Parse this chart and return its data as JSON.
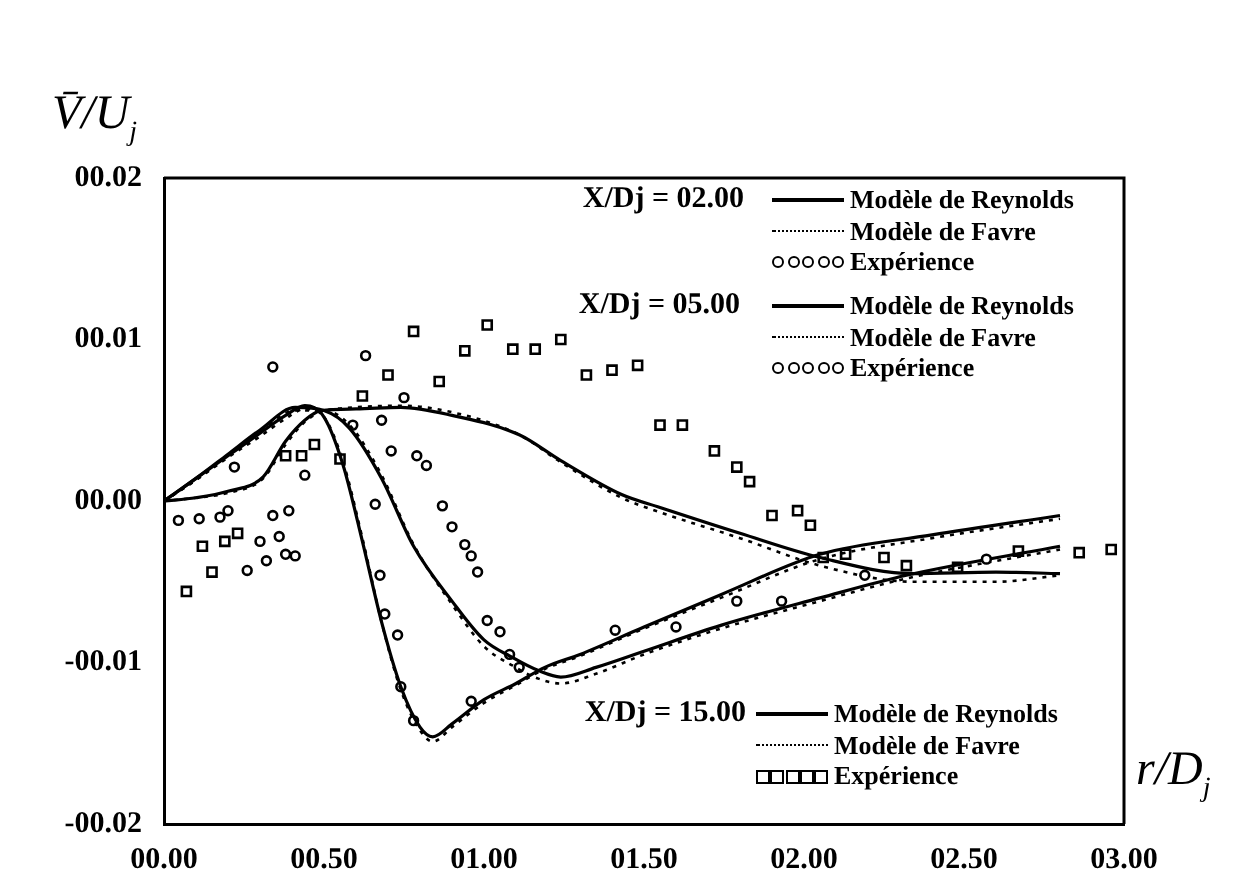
{
  "chart_data": {
    "type": "line",
    "xlabel": "r/D$_{j}$",
    "ylabel": "V̄/U$_{j}$",
    "annotations": [
      "X/Dj = 02.00",
      "X/Dj = 05.00",
      "X/Dj = 15.00"
    ],
    "xlim": [
      0,
      3
    ],
    "xticks": [
      {
        "value": 0,
        "label": "00.00"
      },
      {
        "value": 0.5,
        "label": "00.50"
      },
      {
        "value": 1,
        "label": "01.00"
      },
      {
        "value": 1.5,
        "label": "01.50"
      },
      {
        "value": 2,
        "label": "02.00"
      },
      {
        "value": 2.5,
        "label": "02.50"
      },
      {
        "value": 3,
        "label": "03.00"
      }
    ],
    "ylim": [
      -0.02,
      0.02
    ],
    "yticks": [
      {
        "value": -0.02,
        "label": "-00.02"
      },
      {
        "value": -0.01,
        "label": "-00.01"
      },
      {
        "value": 0,
        "label": "00.00"
      },
      {
        "value": 0.01,
        "label": "00.01"
      },
      {
        "value": 0.02,
        "label": "00.02"
      }
    ],
    "grid": false,
    "legend": "right",
    "series": [
      {
        "name": "Modèle de Reynolds",
        "type": "line",
        "line_style": "solid",
        "marker": "none",
        "color": "#000000",
        "x": [
          0,
          0.1,
          0.2,
          0.3,
          0.38,
          0.44,
          0.5,
          0.56,
          0.62,
          0.68,
          0.74,
          0.8,
          0.84,
          0.9,
          1.0,
          1.1,
          1.19,
          1.3,
          1.5,
          1.74,
          2.05,
          2.4,
          2.8
        ],
        "values": [
          0,
          0.0014,
          0.0028,
          0.0042,
          0.0053,
          0.0059,
          0.0052,
          0.0022,
          -0.0025,
          -0.0075,
          -0.0115,
          -0.014,
          -0.0146,
          -0.0138,
          -0.0123,
          -0.0113,
          -0.0103,
          -0.0095,
          -0.0078,
          -0.0058,
          -0.0033,
          -0.0021,
          -0.0009
        ]
      },
      {
        "name": "Modèle de Favre",
        "type": "line",
        "line_style": "dotted",
        "marker": "none",
        "color": "#000000",
        "x": [
          0,
          0.1,
          0.2,
          0.3,
          0.38,
          0.44,
          0.5,
          0.56,
          0.62,
          0.68,
          0.74,
          0.8,
          0.84,
          0.9,
          1.0,
          1.1,
          1.19,
          1.3,
          1.5,
          1.74,
          2.05,
          2.4,
          2.8
        ],
        "values": [
          0,
          0.0013,
          0.0027,
          0.004,
          0.0051,
          0.0057,
          0.0052,
          0.0024,
          -0.0023,
          -0.0075,
          -0.0117,
          -0.0142,
          -0.0149,
          -0.014,
          -0.0125,
          -0.0114,
          -0.0104,
          -0.0096,
          -0.0079,
          -0.006,
          -0.0036,
          -0.0023,
          -0.0011
        ]
      },
      {
        "name": "Expérience",
        "type": "scatter",
        "marker": "circle",
        "color": "#000000",
        "x": [
          0.175,
          0.2,
          0.26,
          0.3,
          0.32,
          0.34,
          0.36,
          0.38,
          0.39,
          0.41,
          0.44,
          0.66,
          0.675,
          0.69,
          0.73,
          0.74,
          0.78,
          0.96,
          1.6,
          1.93,
          2.57
        ],
        "values": [
          -0.001,
          -0.0006,
          -0.0043,
          -0.0025,
          -0.0037,
          -0.0009,
          -0.0022,
          -0.0033,
          -0.0006,
          -0.0034,
          0.0016,
          -0.0002,
          -0.0046,
          -0.007,
          -0.0083,
          -0.0115,
          -0.0136,
          -0.0124,
          -0.0078,
          -0.0062,
          -0.0036
        ]
      },
      {
        "name": "Modèle de Reynolds",
        "type": "line",
        "line_style": "solid",
        "marker": "none",
        "color": "#000000",
        "x": [
          0,
          0.1,
          0.2,
          0.3,
          0.41,
          0.5,
          0.58,
          0.68,
          0.78,
          0.9,
          1.0,
          1.09,
          1.17,
          1.24,
          1.35,
          1.5,
          1.74,
          2.05,
          2.32,
          2.8
        ],
        "values": [
          0,
          0.0014,
          0.0029,
          0.0044,
          0.0058,
          0.0056,
          0.0045,
          0.0014,
          -0.0028,
          -0.0062,
          -0.0086,
          -0.0097,
          -0.0105,
          -0.0109,
          -0.0103,
          -0.0093,
          -0.0077,
          -0.006,
          -0.0046,
          -0.0028
        ]
      },
      {
        "name": "Modèle de Favre",
        "type": "line",
        "line_style": "dotted",
        "marker": "none",
        "color": "#000000",
        "x": [
          0,
          0.1,
          0.2,
          0.3,
          0.41,
          0.5,
          0.58,
          0.68,
          0.78,
          0.9,
          1.0,
          1.09,
          1.17,
          1.24,
          1.35,
          1.5,
          1.74,
          2.05,
          2.32,
          2.8
        ],
        "values": [
          0,
          0.0013,
          0.0028,
          0.0043,
          0.0056,
          0.0056,
          0.0047,
          0.0016,
          -0.0027,
          -0.0064,
          -0.009,
          -0.0102,
          -0.011,
          -0.0113,
          -0.0107,
          -0.0095,
          -0.0079,
          -0.0062,
          -0.0048,
          -0.003
        ]
      },
      {
        "name": "Expérience",
        "type": "scatter",
        "marker": "circle",
        "color": "#000000",
        "x": [
          0.045,
          0.11,
          0.22,
          0.34,
          0.59,
          0.63,
          0.68,
          0.71,
          0.75,
          0.79,
          0.82,
          0.87,
          0.9,
          0.94,
          0.96,
          0.98,
          1.01,
          1.05,
          1.08,
          1.11,
          1.41,
          1.79,
          2.19
        ],
        "values": [
          -0.0012,
          -0.0011,
          0.0021,
          0.0083,
          0.0047,
          0.009,
          0.005,
          0.0031,
          0.0064,
          0.0028,
          0.0022,
          -0.0003,
          -0.0016,
          -0.0027,
          -0.0034,
          -0.0044,
          -0.0074,
          -0.0081,
          -0.0095,
          -0.0103,
          -0.008,
          -0.0062,
          -0.0046
        ]
      },
      {
        "name": "Modèle de Reynolds",
        "type": "line",
        "line_style": "solid",
        "marker": "none",
        "color": "#000000",
        "x": [
          0,
          0.1,
          0.2,
          0.31,
          0.38,
          0.44,
          0.49,
          0.6,
          0.74,
          0.9,
          1.11,
          1.24,
          1.43,
          1.55,
          1.8,
          2.05,
          2.34,
          2.6,
          2.8
        ],
        "values": [
          0,
          0.0002,
          0.0006,
          0.0015,
          0.0037,
          0.005,
          0.0056,
          0.0057,
          0.0058,
          0.0053,
          0.0041,
          0.0025,
          0.0004,
          -0.0004,
          -0.002,
          -0.0035,
          -0.0045,
          -0.0044,
          -0.0045
        ]
      },
      {
        "name": "Modèle de Favre",
        "type": "line",
        "line_style": "dotted",
        "marker": "none",
        "color": "#000000",
        "x": [
          0,
          0.1,
          0.2,
          0.31,
          0.38,
          0.44,
          0.49,
          0.6,
          0.74,
          0.9,
          1.11,
          1.24,
          1.43,
          1.55,
          1.8,
          2.05,
          2.34,
          2.6,
          2.8
        ],
        "values": [
          0,
          0.0002,
          0.0005,
          0.0014,
          0.0035,
          0.0049,
          0.0055,
          0.0058,
          0.0059,
          0.0055,
          0.0041,
          0.0024,
          0.0002,
          -0.0007,
          -0.0023,
          -0.004,
          -0.005,
          -0.005,
          -0.0046
        ]
      },
      {
        "name": "Expérience",
        "type": "scatter",
        "marker": "square",
        "color": "#000000",
        "x": [
          0.07,
          0.12,
          0.15,
          0.19,
          0.23,
          0.38,
          0.43,
          0.47,
          0.55,
          0.62,
          0.7,
          0.78,
          0.86,
          0.94,
          1.01,
          1.09,
          1.16,
          1.24,
          1.32,
          1.4,
          1.48,
          1.55,
          1.62,
          1.72,
          1.79,
          1.83,
          1.9,
          1.98,
          2.02,
          2.06,
          2.13,
          2.25,
          2.32,
          2.48,
          2.67,
          2.86,
          2.96
        ],
        "values": [
          -0.0056,
          -0.0028,
          -0.0044,
          -0.0025,
          -0.002,
          0.0028,
          0.0028,
          0.0035,
          0.0026,
          0.0065,
          0.0078,
          0.0105,
          0.0074,
          0.0093,
          0.0109,
          0.0094,
          0.0094,
          0.01,
          0.0078,
          0.0081,
          0.0084,
          0.0047,
          0.0047,
          0.0031,
          0.0021,
          0.0012,
          -0.0009,
          -0.0006,
          -0.0015,
          -0.0035,
          -0.0033,
          -0.0035,
          -0.004,
          -0.0041,
          -0.0031,
          -0.0032,
          -0.003
        ]
      }
    ]
  }
}
